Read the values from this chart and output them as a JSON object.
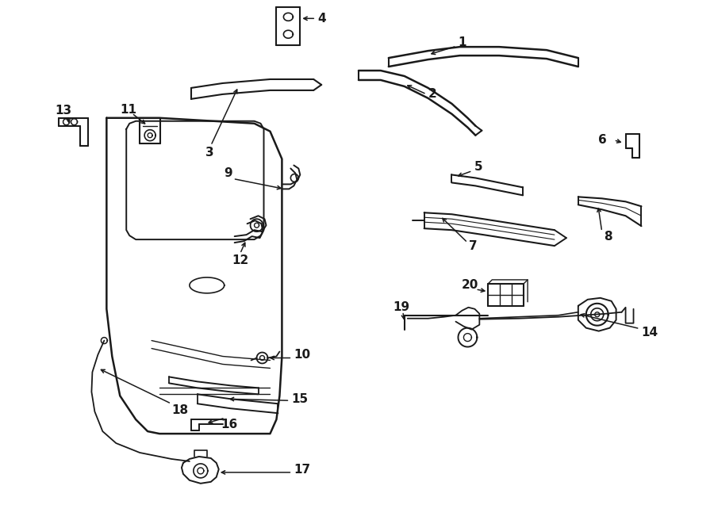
{
  "bg_color": "#ffffff",
  "line_color": "#1a1a1a",
  "figsize": [
    9.0,
    6.61
  ],
  "dpi": 100
}
